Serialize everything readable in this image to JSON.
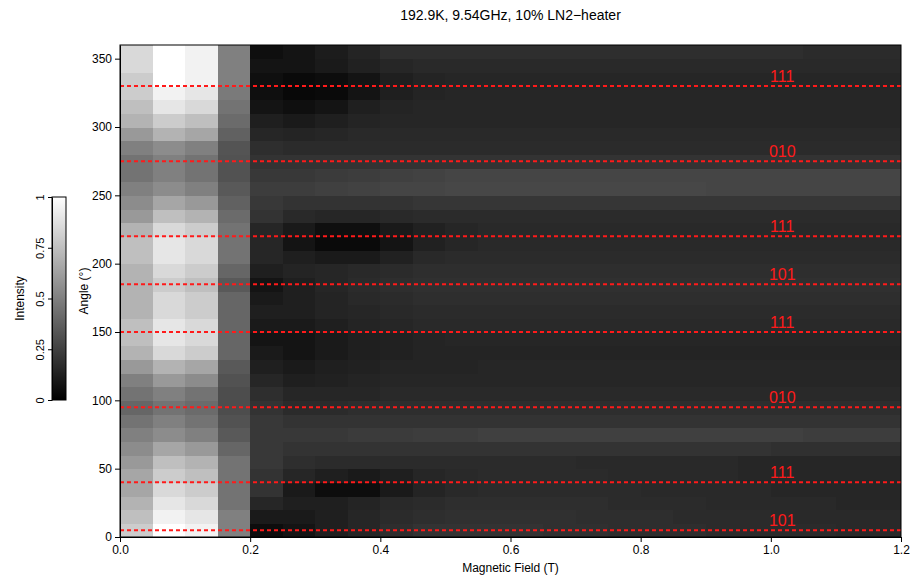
{
  "chart_data": {
    "type": "heatmap",
    "title": "192.9K, 9.54GHz, 10% LN2−heater",
    "x_label": "Magnetic Field (T)",
    "y_label": "Angle (°)",
    "xlim": [
      0,
      1.2
    ],
    "ylim": [
      0,
      360
    ],
    "xticks": [
      {
        "value": 0,
        "label": "0.0"
      },
      0.2,
      0.4,
      0.6,
      0.8,
      {
        "value": 1,
        "label": "1.0"
      },
      1.2
    ],
    "yticks": [
      0,
      50,
      100,
      150,
      200,
      250,
      300,
      350
    ],
    "colorbar": {
      "label": "Intensity",
      "lim": [
        0,
        1
      ],
      "ticks": [
        0,
        0.25,
        0.5,
        0.75,
        1
      ]
    },
    "annotations": [
      {
        "y": 5,
        "label": "101"
      },
      {
        "y": 40,
        "label": "111"
      },
      {
        "y": 95,
        "label": "010"
      },
      {
        "y": 150,
        "label": "111"
      },
      {
        "y": 185,
        "label": "101"
      },
      {
        "y": 220,
        "label": "111"
      },
      {
        "y": 275,
        "label": "010"
      },
      {
        "y": 330,
        "label": "111"
      }
    ],
    "x": [
      0.025,
      0.075,
      0.125,
      0.175,
      0.225,
      0.275,
      0.325,
      0.375,
      0.425,
      0.475,
      0.525,
      0.575,
      0.625,
      0.675,
      0.725,
      0.775,
      0.825,
      0.875,
      0.925,
      0.975,
      1.025,
      1.075,
      1.125,
      1.175
    ],
    "y": [
      5,
      15,
      25,
      35,
      45,
      55,
      65,
      75,
      85,
      95,
      105,
      115,
      125,
      135,
      145,
      155,
      165,
      175,
      185,
      195,
      205,
      215,
      225,
      235,
      245,
      255,
      265,
      275,
      285,
      295,
      305,
      315,
      325,
      335,
      345,
      355
    ],
    "values": [
      [
        0.8,
        1.0,
        0.95,
        0.5,
        0.05,
        0.08,
        0.12,
        0.15,
        0.18,
        0.2,
        0.2,
        0.2,
        0.2,
        0.19,
        0.19,
        0.18,
        0.18,
        0.18,
        0.17,
        0.17,
        0.17,
        0.17,
        0.16,
        0.16
      ],
      [
        0.75,
        0.95,
        0.9,
        0.5,
        0.1,
        0.1,
        0.12,
        0.15,
        0.17,
        0.18,
        0.19,
        0.19,
        0.19,
        0.19,
        0.18,
        0.18,
        0.18,
        0.17,
        0.17,
        0.17,
        0.16,
        0.16,
        0.16,
        0.16
      ],
      [
        0.7,
        0.9,
        0.85,
        0.45,
        0.15,
        0.12,
        0.12,
        0.14,
        0.16,
        0.17,
        0.18,
        0.18,
        0.18,
        0.18,
        0.18,
        0.17,
        0.17,
        0.17,
        0.16,
        0.16,
        0.16,
        0.16,
        0.15,
        0.15
      ],
      [
        0.65,
        0.85,
        0.8,
        0.45,
        0.2,
        0.1,
        0.05,
        0.05,
        0.1,
        0.14,
        0.16,
        0.17,
        0.17,
        0.17,
        0.17,
        0.17,
        0.16,
        0.16,
        0.16,
        0.16,
        0.15,
        0.15,
        0.15,
        0.15
      ],
      [
        0.65,
        0.8,
        0.75,
        0.45,
        0.2,
        0.15,
        0.12,
        0.1,
        0.12,
        0.15,
        0.16,
        0.17,
        0.17,
        0.17,
        0.17,
        0.16,
        0.16,
        0.16,
        0.16,
        0.15,
        0.15,
        0.15,
        0.15,
        0.15
      ],
      [
        0.6,
        0.75,
        0.7,
        0.45,
        0.22,
        0.18,
        0.17,
        0.17,
        0.17,
        0.17,
        0.17,
        0.17,
        0.17,
        0.17,
        0.16,
        0.16,
        0.16,
        0.16,
        0.16,
        0.15,
        0.15,
        0.15,
        0.15,
        0.15
      ],
      [
        0.55,
        0.65,
        0.6,
        0.4,
        0.22,
        0.2,
        0.2,
        0.2,
        0.2,
        0.2,
        0.2,
        0.2,
        0.2,
        0.2,
        0.2,
        0.2,
        0.2,
        0.2,
        0.2,
        0.2,
        0.19,
        0.19,
        0.19,
        0.19
      ],
      [
        0.5,
        0.55,
        0.5,
        0.35,
        0.22,
        0.22,
        0.22,
        0.23,
        0.23,
        0.24,
        0.24,
        0.25,
        0.25,
        0.25,
        0.25,
        0.25,
        0.25,
        0.25,
        0.25,
        0.25,
        0.25,
        0.24,
        0.24,
        0.24
      ],
      [
        0.45,
        0.5,
        0.45,
        0.32,
        0.22,
        0.2,
        0.2,
        0.2,
        0.2,
        0.2,
        0.2,
        0.2,
        0.2,
        0.2,
        0.2,
        0.2,
        0.2,
        0.2,
        0.2,
        0.2,
        0.2,
        0.2,
        0.2,
        0.2
      ],
      [
        0.4,
        0.45,
        0.42,
        0.3,
        0.2,
        0.17,
        0.17,
        0.18,
        0.18,
        0.18,
        0.18,
        0.18,
        0.18,
        0.18,
        0.18,
        0.18,
        0.18,
        0.18,
        0.18,
        0.18,
        0.18,
        0.18,
        0.18,
        0.18
      ],
      [
        0.45,
        0.5,
        0.45,
        0.3,
        0.18,
        0.15,
        0.15,
        0.15,
        0.16,
        0.16,
        0.16,
        0.16,
        0.16,
        0.16,
        0.16,
        0.16,
        0.16,
        0.16,
        0.16,
        0.16,
        0.16,
        0.16,
        0.16,
        0.16
      ],
      [
        0.5,
        0.6,
        0.55,
        0.32,
        0.15,
        0.12,
        0.13,
        0.14,
        0.15,
        0.15,
        0.15,
        0.15,
        0.15,
        0.15,
        0.15,
        0.15,
        0.15,
        0.15,
        0.15,
        0.15,
        0.15,
        0.15,
        0.15,
        0.15
      ],
      [
        0.6,
        0.7,
        0.65,
        0.35,
        0.12,
        0.1,
        0.12,
        0.13,
        0.14,
        0.14,
        0.14,
        0.15,
        0.15,
        0.15,
        0.15,
        0.15,
        0.15,
        0.15,
        0.15,
        0.15,
        0.15,
        0.15,
        0.15,
        0.15
      ],
      [
        0.7,
        0.85,
        0.8,
        0.4,
        0.1,
        0.08,
        0.1,
        0.12,
        0.13,
        0.14,
        0.14,
        0.14,
        0.14,
        0.14,
        0.14,
        0.14,
        0.14,
        0.14,
        0.14,
        0.14,
        0.14,
        0.14,
        0.14,
        0.14
      ],
      [
        0.75,
        0.9,
        0.85,
        0.4,
        0.08,
        0.08,
        0.1,
        0.12,
        0.13,
        0.14,
        0.15,
        0.15,
        0.15,
        0.15,
        0.15,
        0.15,
        0.15,
        0.15,
        0.15,
        0.15,
        0.15,
        0.15,
        0.15,
        0.15
      ],
      [
        0.75,
        0.9,
        0.85,
        0.4,
        0.1,
        0.1,
        0.12,
        0.14,
        0.15,
        0.16,
        0.16,
        0.16,
        0.16,
        0.16,
        0.16,
        0.16,
        0.16,
        0.16,
        0.16,
        0.16,
        0.16,
        0.16,
        0.16,
        0.16
      ],
      [
        0.7,
        0.85,
        0.8,
        0.4,
        0.12,
        0.12,
        0.14,
        0.15,
        0.16,
        0.17,
        0.17,
        0.17,
        0.17,
        0.17,
        0.17,
        0.17,
        0.17,
        0.17,
        0.17,
        0.17,
        0.17,
        0.17,
        0.17,
        0.17
      ],
      [
        0.7,
        0.85,
        0.8,
        0.4,
        0.1,
        0.12,
        0.14,
        0.16,
        0.17,
        0.18,
        0.18,
        0.18,
        0.18,
        0.18,
        0.18,
        0.18,
        0.18,
        0.18,
        0.18,
        0.18,
        0.18,
        0.18,
        0.18,
        0.18
      ],
      [
        0.7,
        0.8,
        0.75,
        0.35,
        0.08,
        0.12,
        0.15,
        0.17,
        0.18,
        0.19,
        0.19,
        0.19,
        0.19,
        0.19,
        0.19,
        0.19,
        0.19,
        0.19,
        0.19,
        0.19,
        0.19,
        0.19,
        0.19,
        0.19
      ],
      [
        0.7,
        0.85,
        0.8,
        0.4,
        0.12,
        0.14,
        0.15,
        0.16,
        0.17,
        0.18,
        0.18,
        0.18,
        0.18,
        0.18,
        0.18,
        0.18,
        0.18,
        0.18,
        0.18,
        0.18,
        0.18,
        0.18,
        0.18,
        0.18
      ],
      [
        0.75,
        0.9,
        0.85,
        0.45,
        0.15,
        0.12,
        0.1,
        0.1,
        0.13,
        0.16,
        0.17,
        0.17,
        0.17,
        0.17,
        0.17,
        0.17,
        0.17,
        0.17,
        0.17,
        0.17,
        0.17,
        0.17,
        0.17,
        0.17
      ],
      [
        0.75,
        0.9,
        0.85,
        0.45,
        0.15,
        0.08,
        0.04,
        0.04,
        0.08,
        0.13,
        0.15,
        0.16,
        0.16,
        0.16,
        0.16,
        0.16,
        0.16,
        0.16,
        0.16,
        0.16,
        0.16,
        0.16,
        0.16,
        0.16
      ],
      [
        0.7,
        0.85,
        0.8,
        0.45,
        0.15,
        0.1,
        0.06,
        0.06,
        0.1,
        0.13,
        0.15,
        0.16,
        0.16,
        0.16,
        0.16,
        0.16,
        0.16,
        0.16,
        0.16,
        0.16,
        0.16,
        0.16,
        0.16,
        0.16
      ],
      [
        0.6,
        0.75,
        0.7,
        0.42,
        0.2,
        0.16,
        0.15,
        0.15,
        0.16,
        0.17,
        0.17,
        0.17,
        0.17,
        0.17,
        0.17,
        0.17,
        0.17,
        0.17,
        0.17,
        0.17,
        0.17,
        0.17,
        0.17,
        0.17
      ],
      [
        0.55,
        0.65,
        0.6,
        0.38,
        0.22,
        0.2,
        0.2,
        0.2,
        0.2,
        0.21,
        0.21,
        0.21,
        0.21,
        0.21,
        0.21,
        0.21,
        0.21,
        0.21,
        0.21,
        0.21,
        0.21,
        0.21,
        0.21,
        0.21
      ],
      [
        0.5,
        0.55,
        0.5,
        0.35,
        0.24,
        0.24,
        0.25,
        0.26,
        0.27,
        0.27,
        0.28,
        0.28,
        0.28,
        0.28,
        0.28,
        0.28,
        0.28,
        0.28,
        0.27,
        0.27,
        0.27,
        0.27,
        0.27,
        0.27
      ],
      [
        0.45,
        0.5,
        0.45,
        0.32,
        0.22,
        0.22,
        0.23,
        0.24,
        0.25,
        0.26,
        0.27,
        0.27,
        0.27,
        0.27,
        0.27,
        0.27,
        0.27,
        0.27,
        0.27,
        0.27,
        0.27,
        0.27,
        0.27,
        0.27
      ],
      [
        0.45,
        0.5,
        0.45,
        0.32,
        0.2,
        0.2,
        0.2,
        0.2,
        0.2,
        0.2,
        0.2,
        0.2,
        0.2,
        0.2,
        0.2,
        0.2,
        0.2,
        0.2,
        0.2,
        0.2,
        0.2,
        0.2,
        0.2,
        0.2
      ],
      [
        0.5,
        0.55,
        0.5,
        0.33,
        0.18,
        0.17,
        0.17,
        0.17,
        0.17,
        0.17,
        0.17,
        0.17,
        0.17,
        0.17,
        0.17,
        0.17,
        0.17,
        0.17,
        0.17,
        0.17,
        0.17,
        0.17,
        0.17,
        0.17
      ],
      [
        0.6,
        0.7,
        0.65,
        0.38,
        0.15,
        0.14,
        0.15,
        0.16,
        0.16,
        0.16,
        0.16,
        0.16,
        0.16,
        0.16,
        0.16,
        0.16,
        0.16,
        0.16,
        0.16,
        0.16,
        0.16,
        0.16,
        0.16,
        0.16
      ],
      [
        0.7,
        0.8,
        0.75,
        0.42,
        0.12,
        0.1,
        0.12,
        0.14,
        0.15,
        0.15,
        0.15,
        0.15,
        0.15,
        0.15,
        0.15,
        0.15,
        0.15,
        0.15,
        0.15,
        0.15,
        0.15,
        0.15,
        0.15,
        0.15
      ],
      [
        0.75,
        0.9,
        0.85,
        0.45,
        0.08,
        0.06,
        0.08,
        0.12,
        0.14,
        0.15,
        0.15,
        0.15,
        0.15,
        0.15,
        0.15,
        0.15,
        0.15,
        0.15,
        0.15,
        0.15,
        0.15,
        0.15,
        0.15,
        0.15
      ],
      [
        0.8,
        0.95,
        0.9,
        0.48,
        0.06,
        0.03,
        0.04,
        0.08,
        0.12,
        0.14,
        0.15,
        0.15,
        0.15,
        0.15,
        0.15,
        0.15,
        0.15,
        0.15,
        0.15,
        0.15,
        0.15,
        0.15,
        0.15,
        0.15
      ],
      [
        0.8,
        1.0,
        0.95,
        0.5,
        0.06,
        0.04,
        0.05,
        0.08,
        0.12,
        0.14,
        0.15,
        0.15,
        0.15,
        0.15,
        0.15,
        0.15,
        0.15,
        0.15,
        0.15,
        0.15,
        0.15,
        0.15,
        0.15,
        0.15
      ],
      [
        0.85,
        1.0,
        0.95,
        0.5,
        0.08,
        0.08,
        0.1,
        0.13,
        0.15,
        0.16,
        0.16,
        0.16,
        0.16,
        0.16,
        0.16,
        0.16,
        0.16,
        0.16,
        0.16,
        0.16,
        0.16,
        0.16,
        0.16,
        0.16
      ],
      [
        0.85,
        1.0,
        0.95,
        0.5,
        0.06,
        0.08,
        0.11,
        0.14,
        0.18,
        0.18,
        0.18,
        0.18,
        0.18,
        0.18,
        0.18,
        0.18,
        0.18,
        0.18,
        0.18,
        0.18,
        0.18,
        0.17,
        0.17,
        0.17
      ]
    ]
  }
}
